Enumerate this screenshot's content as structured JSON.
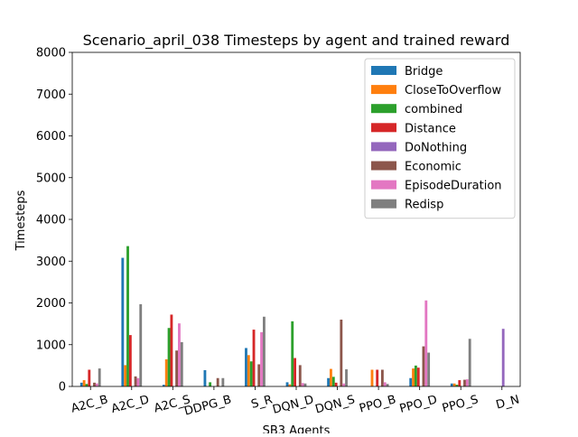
{
  "chart_data": {
    "type": "bar",
    "title": "Scenario_april_038 Timesteps by agent and trained reward",
    "xlabel": "SB3 Agents",
    "ylabel": "Timesteps",
    "ylim": [
      0,
      8000
    ],
    "yticks": [
      0,
      1000,
      2000,
      3000,
      4000,
      5000,
      6000,
      7000,
      8000
    ],
    "categories": [
      "A2C_B",
      "A2C_D",
      "A2C_S",
      "DDPG_B",
      "S_R",
      "DQN_D",
      "DQN_S",
      "PPO_B",
      "PPO_D",
      "PPO_S",
      "D_N"
    ],
    "legend_position": "top-right",
    "grid": false,
    "series": [
      {
        "name": "Bridge",
        "color": "#1f77b4",
        "values": [
          90,
          3080,
          40,
          390,
          920,
          100,
          200,
          0,
          200,
          70,
          0
        ]
      },
      {
        "name": "CloseToOverflow",
        "color": "#ff7f0e",
        "values": [
          150,
          510,
          650,
          0,
          750,
          50,
          420,
          400,
          430,
          70,
          0
        ]
      },
      {
        "name": "combined",
        "color": "#2ca02c",
        "values": [
          60,
          3360,
          1400,
          100,
          600,
          1560,
          230,
          0,
          500,
          40,
          0
        ]
      },
      {
        "name": "Distance",
        "color": "#d62728",
        "values": [
          400,
          1230,
          1720,
          0,
          1360,
          680,
          90,
          400,
          450,
          150,
          0
        ]
      },
      {
        "name": "DoNothing",
        "color": "#9467bd",
        "values": [
          0,
          0,
          0,
          0,
          0,
          0,
          0,
          0,
          0,
          0,
          1380
        ]
      },
      {
        "name": "Economic",
        "color": "#8c564b",
        "values": [
          90,
          240,
          860,
          200,
          530,
          510,
          1600,
          400,
          960,
          160,
          0
        ]
      },
      {
        "name": "EpisodeDuration",
        "color": "#e377c2",
        "values": [
          70,
          200,
          1510,
          0,
          1300,
          80,
          70,
          100,
          2060,
          170,
          0
        ]
      },
      {
        "name": "Redisp",
        "color": "#7f7f7f",
        "values": [
          430,
          1970,
          1060,
          200,
          1670,
          70,
          410,
          60,
          810,
          1140,
          0
        ]
      }
    ]
  }
}
